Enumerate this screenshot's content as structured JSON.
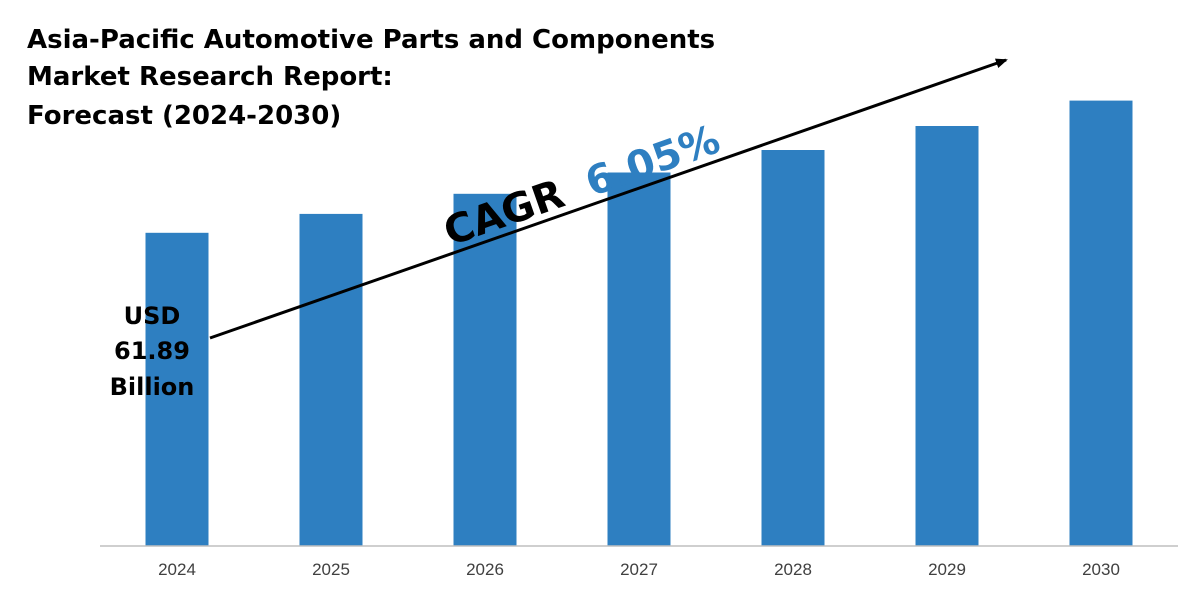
{
  "chart_data": {
    "type": "bar",
    "title_lines": [
      "Asia-Pacific Automotive Parts and Components",
      "Market Research Report:",
      "Forecast (2024-2030)"
    ],
    "categories": [
      "2024",
      "2025",
      "2026",
      "2027",
      "2028",
      "2029",
      "2030"
    ],
    "values": [
      61.89,
      65.63,
      69.6,
      73.81,
      78.27,
      83.0,
      88.02
    ],
    "ylim": [
      0,
      100
    ],
    "units": "USD Billion",
    "xlabel": "",
    "ylabel": "",
    "grid": false,
    "annotations": {
      "start_value_lines": [
        "USD",
        "61.89",
        "Billion"
      ],
      "cagr_label": "CAGR",
      "cagr_value": "6.05%"
    },
    "colors": {
      "bar": "#2E7FC1",
      "cagr_value": "#2E7FC1",
      "text": "#000000",
      "axis": "#BFBFBF"
    }
  }
}
